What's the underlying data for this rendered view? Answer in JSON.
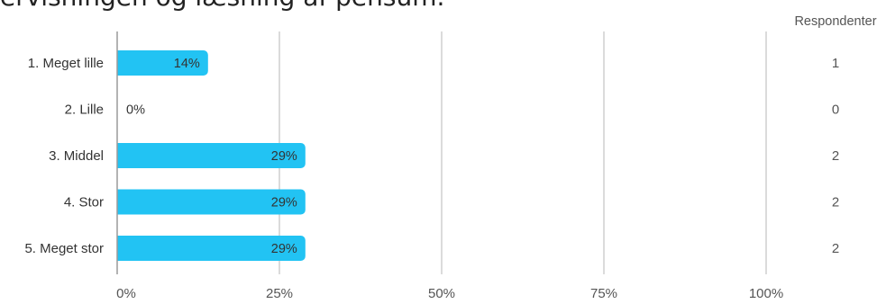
{
  "header": {
    "title": "ervisningen og læsning af pensum."
  },
  "chart_data": {
    "type": "bar",
    "orientation": "horizontal",
    "title": "ervisningen og læsning af pensum.",
    "categories": [
      "1. Meget lille",
      "2. Lille",
      "3. Middel",
      "4. Stor",
      "5. Meget stor"
    ],
    "values": [
      14,
      0,
      29,
      29,
      29
    ],
    "value_labels": [
      "14%",
      "0%",
      "29%",
      "29%",
      "29%"
    ],
    "xlim": [
      0,
      100
    ],
    "x_ticks": [
      0,
      25,
      50,
      75,
      100
    ],
    "x_tick_labels": [
      "0%",
      "25%",
      "50%",
      "75%",
      "100%"
    ],
    "grid": true,
    "respondents_header": "Respondenter",
    "respondents": [
      "1",
      "0",
      "2",
      "2",
      "2"
    ],
    "colors": {
      "bar": "#22c3f3",
      "grid": "#cfcfcf",
      "text": "#333333",
      "muted": "#555555"
    }
  }
}
